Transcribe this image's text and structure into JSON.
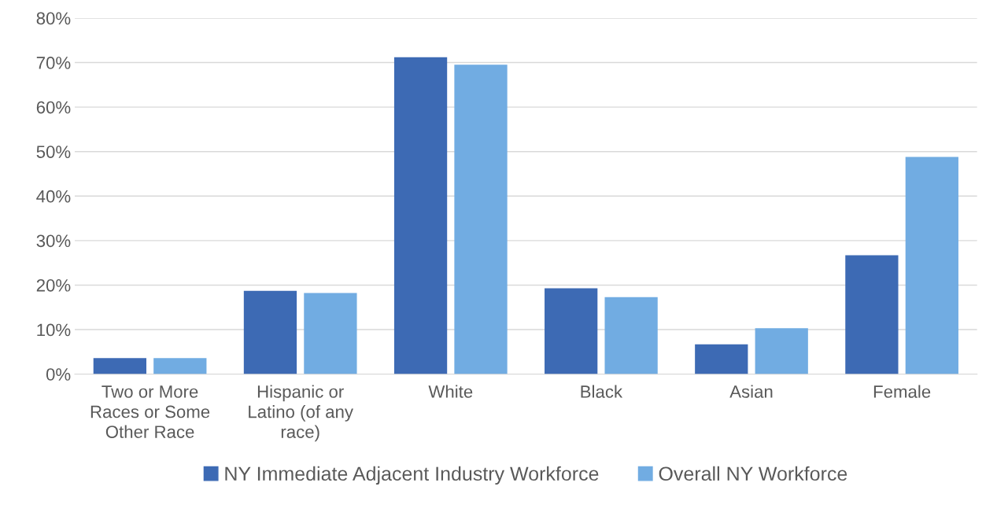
{
  "chart_data": {
    "type": "bar",
    "categories": [
      "Two or More Races or Some Other Race",
      "Hispanic or Latino (of any race)",
      "White",
      "Black",
      "Asian",
      "Female"
    ],
    "series": [
      {
        "name": "NY Immediate Adjacent Industry Workforce",
        "color": "#3d6ab4",
        "values": [
          3.6,
          18.7,
          71.2,
          19.3,
          6.7,
          26.7
        ]
      },
      {
        "name": "Overall NY Workforce",
        "color": "#71ace2",
        "values": [
          3.6,
          18.2,
          69.5,
          17.3,
          10.3,
          48.8
        ]
      }
    ],
    "ylim": [
      0,
      80
    ],
    "yticks": [
      {
        "value": 0,
        "label": "0%"
      },
      {
        "value": 10,
        "label": "10%"
      },
      {
        "value": 20,
        "label": "20%"
      },
      {
        "value": 30,
        "label": "30%"
      },
      {
        "value": 40,
        "label": "40%"
      },
      {
        "value": 50,
        "label": "50%"
      },
      {
        "value": 60,
        "label": "60%"
      },
      {
        "value": 70,
        "label": "70%"
      },
      {
        "value": 80,
        "label": "80%"
      }
    ],
    "grid": "y",
    "legend": "bottom"
  }
}
